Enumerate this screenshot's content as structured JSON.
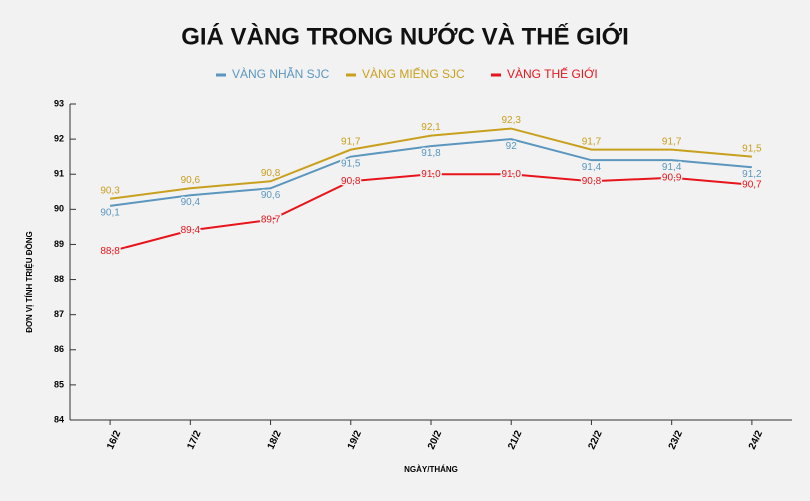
{
  "chart_data": {
    "type": "line",
    "title": "GIÁ VÀNG TRONG NƯỚC VÀ THẾ GIỚI",
    "y_label": "ĐƠN VỊ TÍNH TRIỆU ĐỒNG",
    "x_label": "NGÀY/THÁNG",
    "categories": [
      "16/2",
      "17/2",
      "18/2",
      "19/2",
      "20/2",
      "21/2",
      "22/2",
      "23/2",
      "24/2"
    ],
    "ylim": [
      84,
      93
    ],
    "yticks": [
      84,
      85,
      86,
      87,
      88,
      89,
      90,
      91,
      92,
      93
    ],
    "legend": "top",
    "series": [
      {
        "name": "VÀNG NHẪN SJC",
        "color": "#5b96bf",
        "values": [
          90.1,
          90.4,
          90.6,
          91.5,
          91.8,
          92,
          91.4,
          91.4,
          91.2
        ],
        "value_labels": [
          "90,1",
          "90,4",
          "90,6",
          "91,5",
          "91,8",
          "92",
          "91,4",
          "91,4",
          "91,2"
        ]
      },
      {
        "name": "VÀNG MIẾNG SJC",
        "color": "#c9a01e",
        "values": [
          90.3,
          90.6,
          90.8,
          91.7,
          92.1,
          92.3,
          91.7,
          91.7,
          91.5
        ],
        "value_labels": [
          "90,3",
          "90,6",
          "90,8",
          "91,7",
          "92,1",
          "92,3",
          "91,7",
          "91,7",
          "91,5"
        ]
      },
      {
        "name": "VÀNG THẾ GIỚI",
        "color": "#e8141b",
        "values": [
          88.8,
          89.4,
          89.7,
          90.8,
          91.0,
          91.0,
          90.8,
          90.9,
          90.7
        ],
        "value_labels": [
          "88,8",
          "89,4",
          "89,7",
          "90,8",
          "91,0",
          "91,0",
          "90,8",
          "90,9",
          "90,7"
        ]
      }
    ]
  }
}
